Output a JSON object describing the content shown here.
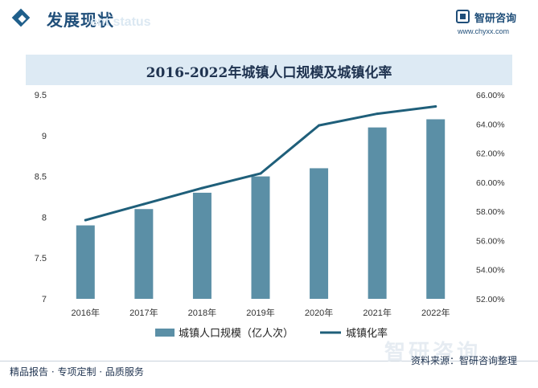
{
  "header": {
    "section_title": "发展现状",
    "section_subtitle": "ent status",
    "logo_name": "智研咨询",
    "logo_url": "www.chyxx.com"
  },
  "chart_data": {
    "type": "bar",
    "title": "2016-2022年城镇人口规模及城镇化率",
    "categories": [
      "2016年",
      "2017年",
      "2018年",
      "2019年",
      "2020年",
      "2021年",
      "2022年"
    ],
    "series": [
      {
        "name": "城镇人口规模（亿人次）",
        "type": "bar",
        "axis": "left",
        "color": "#5b8fa6",
        "values": [
          7.9,
          8.1,
          8.3,
          8.5,
          8.6,
          9.1,
          9.2
        ]
      },
      {
        "name": "城镇化率",
        "type": "line",
        "axis": "right",
        "color": "#1f5f7a",
        "values": [
          57.4,
          58.5,
          59.6,
          60.6,
          63.9,
          64.7,
          65.2
        ]
      }
    ],
    "ylim": [
      7,
      9.5
    ],
    "y_ticks": [
      "7",
      "7.5",
      "8",
      "8.5",
      "9",
      "9.5"
    ],
    "y2lim": [
      52,
      66
    ],
    "y2_ticks": [
      "52.00%",
      "54.00%",
      "56.00%",
      "58.00%",
      "60.00%",
      "62.00%",
      "64.00%",
      "66.00%"
    ],
    "grid": false,
    "legend": "bottom"
  },
  "footer": {
    "left": "精品报告 · 专项定制 · 品质服务",
    "right": "资料来源：智研咨询整理",
    "watermark": "智研咨询"
  }
}
